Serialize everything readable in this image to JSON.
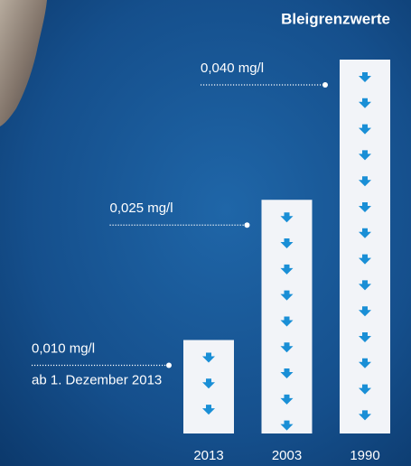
{
  "chart_data": {
    "type": "bar",
    "title": "Bleigrenzwerte",
    "categories": [
      "2013",
      "2003",
      "1990"
    ],
    "values": [
      0.01,
      0.025,
      0.04
    ],
    "value_labels": [
      "0,010 mg/l",
      "0,025 mg/l",
      "0,040 mg/l"
    ],
    "annotation": "ab 1. Dezember 2013",
    "color": "#f2f4f8",
    "arrow_color": "#1a8fd6"
  }
}
